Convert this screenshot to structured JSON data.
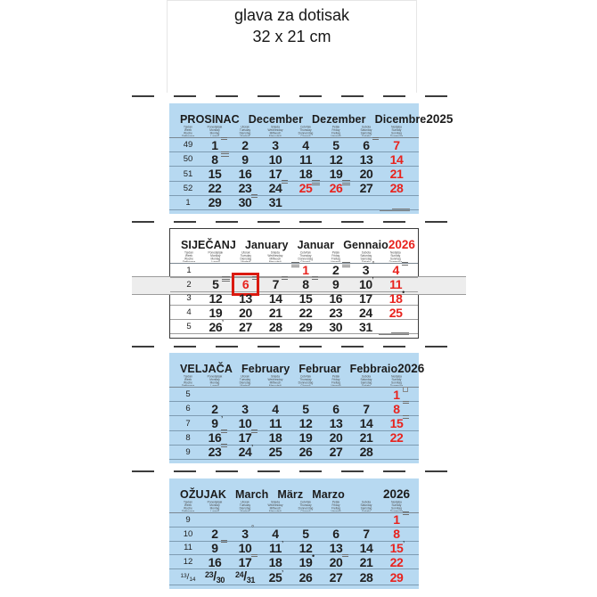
{
  "print_header": {
    "line1": "glava za dotisak",
    "line2": "32 x 21 cm"
  },
  "colors": {
    "panel_blue": "#b7d9f1",
    "accent_red": "#e8231e",
    "slider_gray": "#ededed",
    "text_dark": "#1f1f1f"
  },
  "weekday_columns": [
    [
      "Tjedan",
      "Week",
      "Woche",
      "Settimana"
    ],
    [
      "Ponedjeljak",
      "Monday",
      "Montag",
      "Lunedì"
    ],
    [
      "Utorak",
      "Tuesday",
      "Dienstag",
      "Martedì"
    ],
    [
      "Srijeda",
      "Wednesday",
      "Mittwoch",
      "Mercoledì"
    ],
    [
      "Četvrtak",
      "Thursday",
      "Donnerstag",
      "Giovedì"
    ],
    [
      "Petak",
      "Friday",
      "Freitag",
      "Venerdì"
    ],
    [
      "Subota",
      "Saturday",
      "Samstag",
      "Sabato"
    ],
    [
      "Nedjelja",
      "Sunday",
      "Sonntag",
      "Domenica"
    ]
  ],
  "months": [
    {
      "id": "december",
      "style": "blue",
      "footer_note": true,
      "names": [
        "PROSINAC",
        "December",
        "Dezember",
        "Dicembre"
      ],
      "year": "2025",
      "year_red": false,
      "weeks": [
        {
          "num": "49",
          "days": [
            {
              "d": "1",
              "mark": "note"
            },
            {
              "d": "2"
            },
            {
              "d": "3"
            },
            {
              "d": "4"
            },
            {
              "d": "5"
            },
            {
              "d": "6",
              "mark": "note"
            },
            {
              "d": "7",
              "red": true
            }
          ]
        },
        {
          "num": "50",
          "days": [
            {
              "d": "8",
              "mark": "note2"
            },
            {
              "d": "9"
            },
            {
              "d": "10"
            },
            {
              "d": "11"
            },
            {
              "d": "12"
            },
            {
              "d": "13"
            },
            {
              "d": "14",
              "red": true
            }
          ]
        },
        {
          "num": "51",
          "days": [
            {
              "d": "15"
            },
            {
              "d": "16"
            },
            {
              "d": "17"
            },
            {
              "d": "18"
            },
            {
              "d": "19"
            },
            {
              "d": "20"
            },
            {
              "d": "21",
              "red": true
            }
          ]
        },
        {
          "num": "52",
          "days": [
            {
              "d": "22"
            },
            {
              "d": "23"
            },
            {
              "d": "24",
              "mark": "note"
            },
            {
              "d": "25",
              "red": true,
              "mark": "note2"
            },
            {
              "d": "26",
              "red": true,
              "mark": "note2"
            },
            {
              "d": "27"
            },
            {
              "d": "28",
              "red": true
            }
          ]
        },
        {
          "num": "1",
          "days": [
            {
              "d": "29"
            },
            {
              "d": "30",
              "mark": "note"
            },
            {
              "d": "31"
            },
            {},
            {},
            {},
            {}
          ]
        }
      ]
    },
    {
      "id": "january",
      "style": "white",
      "footer_note": true,
      "slider_week": 1,
      "names": [
        "SIJEČANJ",
        "January",
        "Januar",
        "Gennaio"
      ],
      "year": "2026",
      "year_red": true,
      "weeks": [
        {
          "num": "1",
          "days": [
            {},
            {},
            {},
            {
              "d": "1",
              "red": true,
              "mark": "note2",
              "mark_side": "left"
            },
            {
              "d": "2",
              "mark": "note2"
            },
            {
              "d": "3",
              "mark": "ring"
            },
            {
              "d": "4",
              "red": true,
              "mark": "note"
            }
          ]
        },
        {
          "num": "2",
          "days": [
            {
              "d": "5",
              "mark": "note2"
            },
            {
              "d": "6",
              "red": true,
              "boxed": true,
              "mark": "note"
            },
            {
              "d": "7",
              "mark": "note"
            },
            {
              "d": "8",
              "mark": "note"
            },
            {
              "d": "9"
            },
            {
              "d": "10",
              "mark": "tick"
            },
            {
              "d": "11",
              "red": true
            }
          ]
        },
        {
          "num": "3",
          "days": [
            {
              "d": "12"
            },
            {
              "d": "13"
            },
            {
              "d": "14"
            },
            {
              "d": "15"
            },
            {
              "d": "16"
            },
            {
              "d": "17"
            },
            {
              "d": "18",
              "red": true,
              "mark": "dot"
            }
          ]
        },
        {
          "num": "4",
          "days": [
            {
              "d": "19"
            },
            {
              "d": "20"
            },
            {
              "d": "21"
            },
            {
              "d": "22"
            },
            {
              "d": "23"
            },
            {
              "d": "24"
            },
            {
              "d": "25",
              "red": true
            }
          ]
        },
        {
          "num": "5",
          "days": [
            {
              "d": "26",
              "mark": "tick"
            },
            {
              "d": "27"
            },
            {
              "d": "28"
            },
            {
              "d": "29"
            },
            {
              "d": "30"
            },
            {
              "d": "31"
            },
            {}
          ]
        }
      ]
    },
    {
      "id": "february",
      "style": "blue",
      "footer_note": false,
      "names": [
        "VELJAČA",
        "February",
        "Februar",
        "Febbraio"
      ],
      "year": "2026",
      "year_red": false,
      "weeks": [
        {
          "num": "5",
          "days": [
            {},
            {},
            {},
            {},
            {},
            {},
            {
              "d": "1",
              "red": true,
              "mark": "square"
            }
          ]
        },
        {
          "num": "6",
          "days": [
            {
              "d": "2"
            },
            {
              "d": "3"
            },
            {
              "d": "4"
            },
            {
              "d": "5"
            },
            {
              "d": "6"
            },
            {
              "d": "7"
            },
            {
              "d": "8",
              "red": true,
              "mark": "note"
            }
          ]
        },
        {
          "num": "7",
          "days": [
            {
              "d": "9",
              "mark": "tick"
            },
            {
              "d": "10"
            },
            {
              "d": "11"
            },
            {
              "d": "12"
            },
            {
              "d": "13"
            },
            {
              "d": "14"
            },
            {
              "d": "15",
              "red": true,
              "mark": "note"
            }
          ]
        },
        {
          "num": "8",
          "days": [
            {
              "d": "16",
              "mark": "note"
            },
            {
              "d": "17",
              "mark": "note"
            },
            {
              "d": "18"
            },
            {
              "d": "19"
            },
            {
              "d": "20"
            },
            {
              "d": "21"
            },
            {
              "d": "22",
              "red": true
            }
          ]
        },
        {
          "num": "9",
          "days": [
            {
              "d": "23",
              "mark": "note"
            },
            {
              "d": "24",
              "mark": "tick"
            },
            {
              "d": "25"
            },
            {
              "d": "26"
            },
            {
              "d": "27"
            },
            {
              "d": "28"
            },
            {}
          ]
        }
      ]
    },
    {
      "id": "march",
      "style": "blue",
      "footer_note": false,
      "names": [
        "OŽUJAK",
        "March",
        "März",
        "Marzo"
      ],
      "year": "2026",
      "year_red": false,
      "weeks": [
        {
          "num": "9",
          "days": [
            {},
            {},
            {},
            {},
            {},
            {},
            {
              "d": "1",
              "red": true,
              "mark": "note"
            }
          ]
        },
        {
          "num": "10",
          "days": [
            {
              "d": "2"
            },
            {
              "d": "3",
              "mark": "ring"
            },
            {
              "d": "4"
            },
            {
              "d": "5"
            },
            {
              "d": "6"
            },
            {
              "d": "7"
            },
            {
              "d": "8",
              "red": true
            }
          ]
        },
        {
          "num": "11",
          "days": [
            {
              "d": "9",
              "mark": "note"
            },
            {
              "d": "10"
            },
            {
              "d": "11",
              "mark": "tick"
            },
            {
              "d": "12"
            },
            {
              "d": "13"
            },
            {
              "d": "14"
            },
            {
              "d": "15",
              "red": true,
              "mark": "tick"
            }
          ]
        },
        {
          "num": "12",
          "days": [
            {
              "d": "16"
            },
            {
              "d": "17",
              "mark": "note"
            },
            {
              "d": "18"
            },
            {
              "d": "19",
              "mark": "dot"
            },
            {
              "d": "20",
              "mark": "note"
            },
            {
              "d": "21"
            },
            {
              "d": "22",
              "red": true
            }
          ]
        },
        {
          "num": "13/14",
          "days": [
            {
              "d": "23/30"
            },
            {
              "d": "24/31"
            },
            {
              "d": "25",
              "mark": "tick"
            },
            {
              "d": "26"
            },
            {
              "d": "27"
            },
            {
              "d": "28"
            },
            {
              "d": "29",
              "red": true
            }
          ]
        }
      ]
    }
  ]
}
